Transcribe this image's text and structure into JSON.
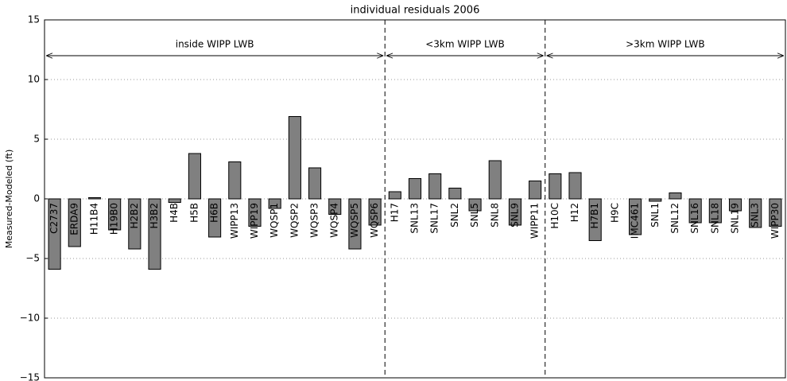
{
  "chart_data": {
    "type": "bar",
    "title": "individual residuals 2006",
    "y_label": "Measured-Modeled (ft)",
    "categories": [
      "C2737",
      "ERDA9",
      "H11B4",
      "H19B0",
      "H2B2",
      "H3B2",
      "H4B",
      "H5B",
      "H6B",
      "WIPP13",
      "WIPP19",
      "WQSP1",
      "WQSP2",
      "WQSP3",
      "WQSP4",
      "WQSP5",
      "WQSP6",
      "H17",
      "SNL13",
      "SNL17",
      "SNL2",
      "SNL5",
      "SNL8",
      "SNL9",
      "WIPP11",
      "H10C",
      "H12",
      "H7B1",
      "H9C",
      "IMC461",
      "SNL1",
      "SNL12",
      "SNL16",
      "SNL18",
      "SNL19",
      "SNL3",
      "WIPP30"
    ],
    "values": [
      -5.9,
      -4.0,
      0.1,
      -2.6,
      -4.2,
      -5.9,
      -0.3,
      3.8,
      -3.2,
      3.1,
      -2.3,
      -0.8,
      6.9,
      2.6,
      -1.3,
      -4.2,
      -2.2,
      0.6,
      1.7,
      2.1,
      0.9,
      -1.0,
      3.2,
      -2.2,
      1.5,
      2.1,
      2.2,
      -3.5,
      0.0,
      -3.0,
      -0.2,
      0.5,
      -2.0,
      -2.0,
      -1.0,
      -2.4,
      -2.3
    ],
    "color": "#808080",
    "ylim": [
      -15,
      15
    ],
    "yticks": [
      {
        "value": -15,
        "label": "−15"
      },
      {
        "value": -10,
        "label": "−10"
      },
      {
        "value": -5,
        "label": "−5"
      },
      0,
      5,
      10,
      15
    ],
    "grid": true,
    "regions": [
      "inside WIPP LWB",
      "<3km WIPP LWB",
      ">3km WIPP LWB"
    ]
  }
}
